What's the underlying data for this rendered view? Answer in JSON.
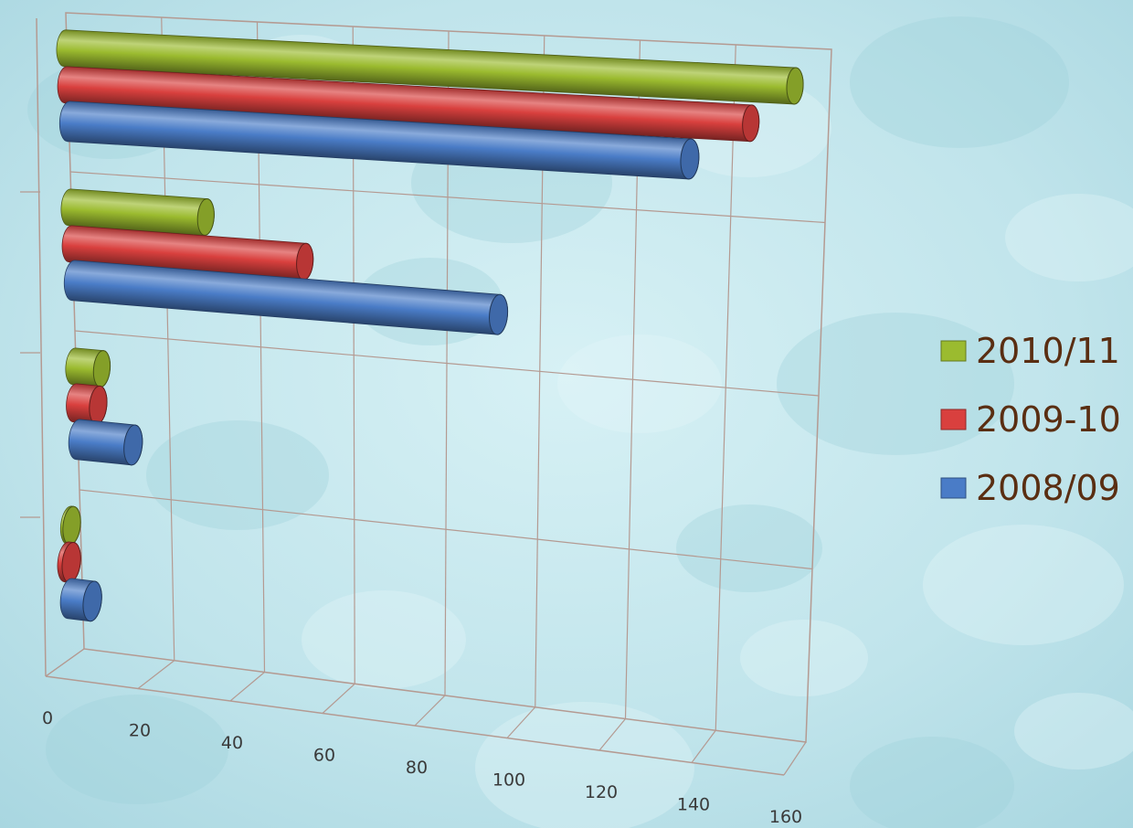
{
  "colors": {
    "background": "#bfe3ea",
    "grid": "#b49a92"
  },
  "chart_data": {
    "type": "bar",
    "orientation": "horizontal",
    "style": "3d-cylinder",
    "title": "",
    "xlabel": "",
    "ylabel": "",
    "categories": [
      "",
      "",
      "",
      ""
    ],
    "xlim": [
      0,
      160
    ],
    "x_ticks": [
      "0",
      "20",
      "40",
      "60",
      "80",
      "100",
      "120",
      "140",
      "160"
    ],
    "grid": true,
    "legend_position": "right",
    "series": [
      {
        "name": "2010/11",
        "color": "#9bbb2f",
        "values": [
          153,
          29,
          6,
          0.5
        ]
      },
      {
        "name": "2009-10",
        "color": "#d9403e",
        "values": [
          144,
          50,
          5,
          1
        ]
      },
      {
        "name": "2008/09",
        "color": "#4a7cc7",
        "values": [
          131,
          91,
          12,
          5
        ]
      }
    ]
  }
}
